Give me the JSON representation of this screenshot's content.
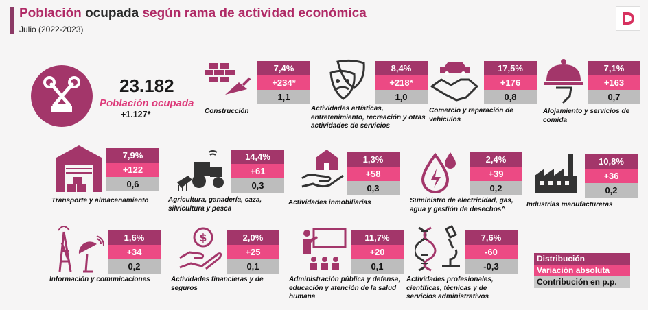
{
  "title": {
    "part1": "Población",
    "part2": " ocupada ",
    "part3": "según rama de actividad económica"
  },
  "subtitle": "Julio (2022-2023)",
  "total": {
    "value": "23.182",
    "label": "Población ocupada",
    "change": "+1.127*"
  },
  "legend": {
    "distribution": "Distribución",
    "variation": "Variación absoluta",
    "contribution": "Contribución en p.p."
  },
  "colors": {
    "distribution": "#a3366a",
    "variation": "#ec4a84",
    "contribution": "#bdbdbd",
    "icon": "#a3366a"
  },
  "chart_data": {
    "type": "table",
    "title": "Población ocupada según rama de actividad económica",
    "subtitle": "Julio (2022-2023)",
    "columns": [
      "Distribución",
      "Variación absoluta",
      "Contribución en p.p."
    ],
    "sectors": [
      {
        "name": "Construcción",
        "icon": "bricks-trowel-icon",
        "distribution": "7,4%",
        "variation": "+234*",
        "contribution": "1,1"
      },
      {
        "name": "Actividades artísticas, entretenimiento, recreación y otras actividades de servicios",
        "icon": "theater-masks-icon",
        "distribution": "8,4%",
        "variation": "+218*",
        "contribution": "1,0"
      },
      {
        "name": "Comercio y reparación de vehículos",
        "icon": "handshake-car-icon",
        "distribution": "17,5%",
        "variation": "+176",
        "contribution": "0,8"
      },
      {
        "name": "Alojamiento y servicios de comida",
        "icon": "cloche-icon",
        "distribution": "7,1%",
        "variation": "+163",
        "contribution": "0,7"
      },
      {
        "name": "Transporte y almacenamiento",
        "icon": "warehouse-icon",
        "distribution": "7,9%",
        "variation": "+122",
        "contribution": "0,6"
      },
      {
        "name": "Agricultura, ganadería, caza, silvicultura y pesca",
        "icon": "tractor-icon",
        "distribution": "14,4%",
        "variation": "+61",
        "contribution": "0,3"
      },
      {
        "name": "Actividades inmobiliarias",
        "icon": "house-hand-icon",
        "distribution": "1,3%",
        "variation": "+58",
        "contribution": "0,3"
      },
      {
        "name": "Suministro de electricidad, gas, agua y gestión de desechos^",
        "icon": "energy-drop-icon",
        "distribution": "2,4%",
        "variation": "+39",
        "contribution": "0,2"
      },
      {
        "name": "Industrias manufactureras",
        "icon": "factory-icon",
        "distribution": "10,8%",
        "variation": "+36",
        "contribution": "0,2"
      },
      {
        "name": "Información y comunicaciones",
        "icon": "antenna-icon",
        "distribution": "1,6%",
        "variation": "+34",
        "contribution": "0,2"
      },
      {
        "name": "Actividades financieras y de seguros",
        "icon": "coin-hand-icon",
        "distribution": "2,0%",
        "variation": "+25",
        "contribution": "0,1"
      },
      {
        "name": "Administración pública y defensa, educación y atención de la salud humana",
        "icon": "classroom-icon",
        "distribution": "11,7%",
        "variation": "+20",
        "contribution": "0,1"
      },
      {
        "name": "Actividades profesionales, científicas, técnicas y de servicios administrativos",
        "icon": "microscope-dna-icon",
        "distribution": "7,6%",
        "variation": "-60",
        "contribution": "-0,3"
      }
    ]
  }
}
